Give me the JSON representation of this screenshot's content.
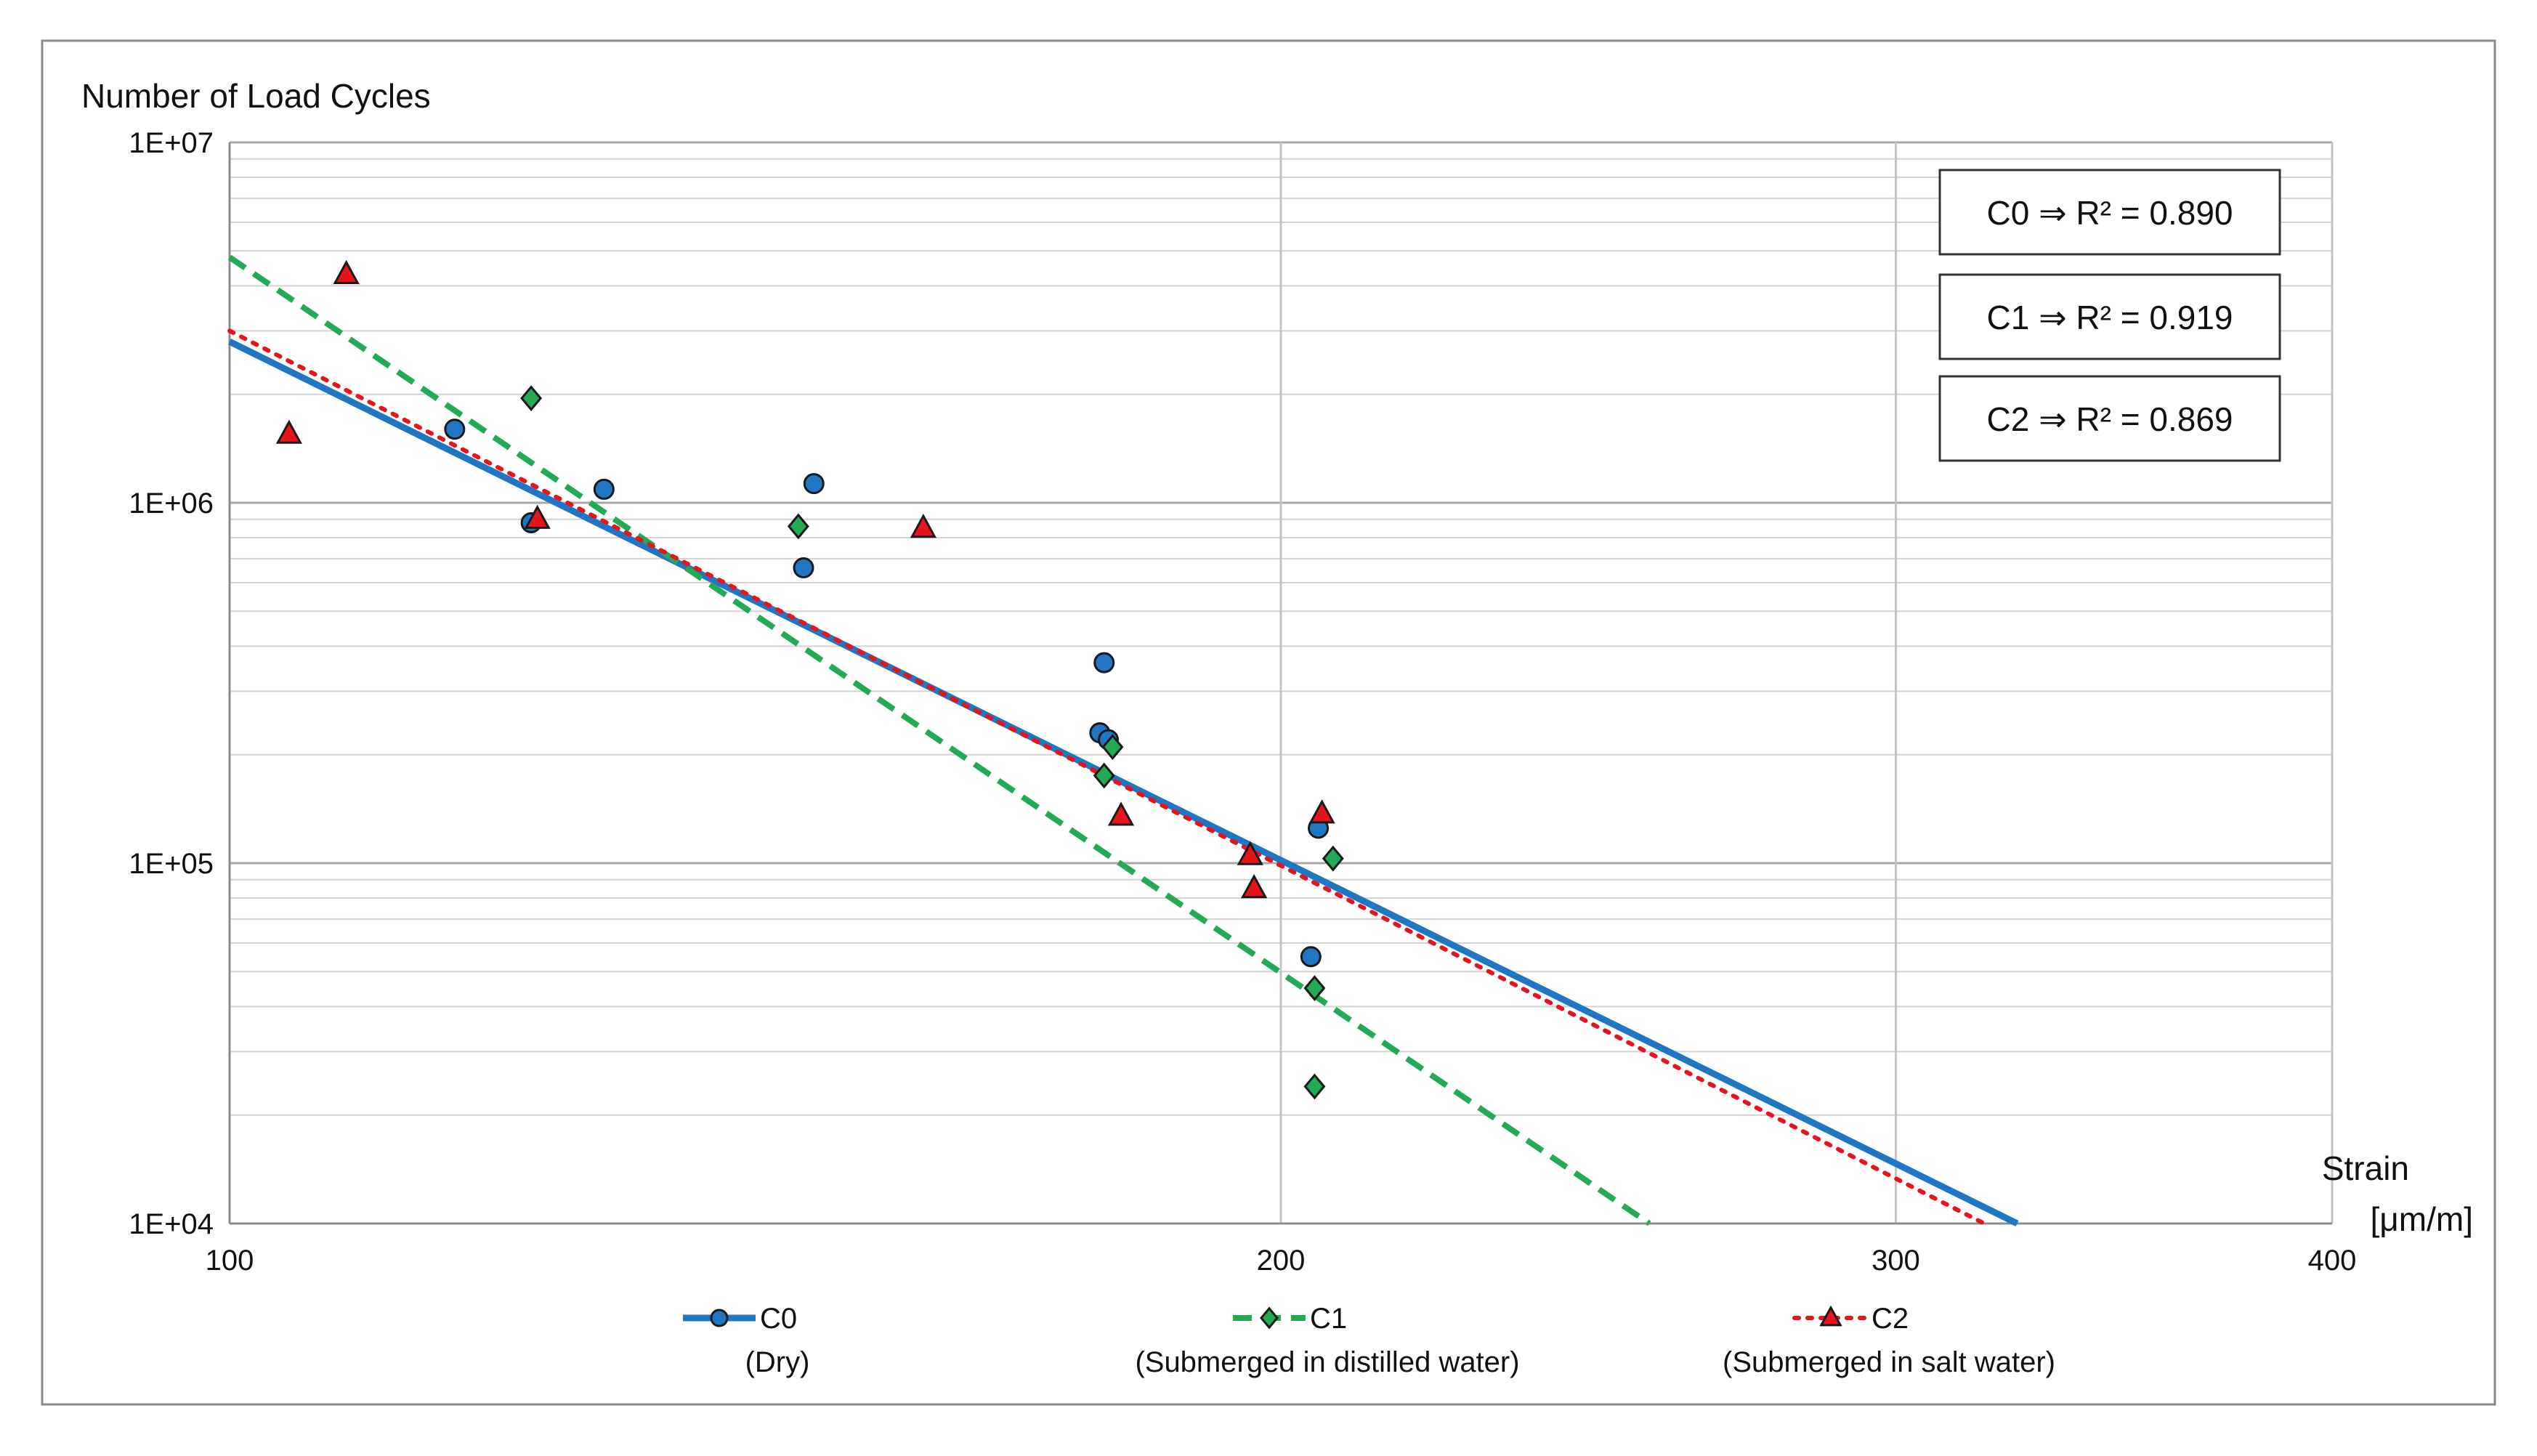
{
  "chart_data": {
    "type": "scatter",
    "title": "",
    "ylabel": "Number of Load Cycles",
    "xlabel_line1": "Strain",
    "xlabel_line2": "[μm/m]",
    "xscale": "log",
    "yscale": "log",
    "xlim": [
      100,
      400
    ],
    "ylim": [
      10000,
      10000000
    ],
    "x_ticks": [
      100,
      200,
      300,
      400
    ],
    "x_tick_labels": [
      "100",
      "200",
      "300",
      "400"
    ],
    "y_ticks": [
      10000,
      100000,
      1000000,
      10000000
    ],
    "y_tick_labels": [
      "1E+04",
      "1E+05",
      "1E+06",
      "1E+07"
    ],
    "grid": true,
    "legend_position": "bottom",
    "annotations": [
      {
        "series": "C0",
        "text": "C0 ⇒ R² = 0.890"
      },
      {
        "series": "C1",
        "text": "C1 ⇒ R² = 0.919"
      },
      {
        "series": "C2",
        "text": "C2 ⇒ R² = 0.869"
      }
    ],
    "series": [
      {
        "name": "C0",
        "description": "(Dry)",
        "color": "#1f77c4",
        "marker": "circle",
        "line_style": "solid",
        "points": [
          {
            "x": 116,
            "y": 1600000
          },
          {
            "x": 122,
            "y": 880000
          },
          {
            "x": 128,
            "y": 1090000
          },
          {
            "x": 146,
            "y": 660000
          },
          {
            "x": 147,
            "y": 1130000
          },
          {
            "x": 178,
            "y": 360000
          },
          {
            "x": 177.5,
            "y": 230000
          },
          {
            "x": 178.5,
            "y": 220000
          },
          {
            "x": 205,
            "y": 125000
          },
          {
            "x": 204,
            "y": 55000
          }
        ],
        "trend": [
          {
            "x": 100,
            "y": 2800000
          },
          {
            "x": 325,
            "y": 10000
          }
        ]
      },
      {
        "name": "C1",
        "description": "(Submerged in distilled water)",
        "color": "#22aa55",
        "marker": "diamond",
        "line_style": "dashed",
        "points": [
          {
            "x": 122,
            "y": 1950000
          },
          {
            "x": 145.5,
            "y": 860000
          },
          {
            "x": 179,
            "y": 210000
          },
          {
            "x": 178,
            "y": 175000
          },
          {
            "x": 207,
            "y": 103000
          },
          {
            "x": 204.5,
            "y": 45000
          },
          {
            "x": 204.5,
            "y": 24000
          }
        ],
        "trend": [
          {
            "x": 100,
            "y": 4800000
          },
          {
            "x": 255,
            "y": 10000
          }
        ]
      },
      {
        "name": "C2",
        "description": "(Submerged in salt water)",
        "color": "#e8141c",
        "marker": "triangle",
        "line_style": "dotted",
        "points": [
          {
            "x": 104,
            "y": 1550000
          },
          {
            "x": 108,
            "y": 4300000
          },
          {
            "x": 122.5,
            "y": 900000
          },
          {
            "x": 158,
            "y": 850000
          },
          {
            "x": 180,
            "y": 135000
          },
          {
            "x": 196,
            "y": 105000
          },
          {
            "x": 196.5,
            "y": 85000
          },
          {
            "x": 205.5,
            "y": 137000
          }
        ],
        "trend": [
          {
            "x": 100,
            "y": 3000000
          },
          {
            "x": 318,
            "y": 10000
          }
        ]
      }
    ]
  }
}
